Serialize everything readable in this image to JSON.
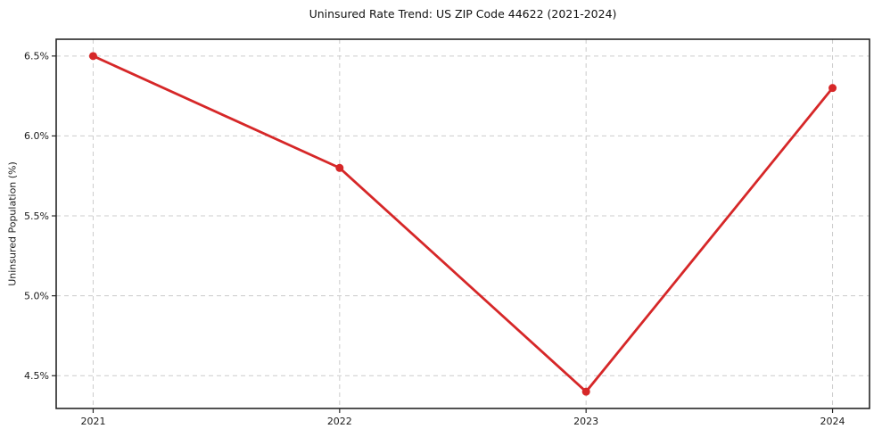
{
  "chart_data": {
    "type": "line",
    "title": "Uninsured Rate Trend: US ZIP Code 44622 (2021-2024)",
    "xlabel": "",
    "ylabel": "Uninsured Population (%)",
    "x": [
      2021,
      2022,
      2023,
      2024
    ],
    "values": [
      6.5,
      5.8,
      4.4,
      6.3
    ],
    "x_tick_labels": [
      "2021",
      "2022",
      "2023",
      "2024"
    ],
    "y_ticks": [
      4.5,
      5.0,
      5.5,
      6.0,
      6.5
    ],
    "y_tick_labels": [
      "4.5%",
      "5.0%",
      "5.5%",
      "6.0%",
      "6.5%"
    ],
    "xlim": [
      2020.85,
      2024.15
    ],
    "ylim": [
      4.295,
      6.605
    ],
    "grid": true,
    "grid_style": "dashed",
    "legend": false,
    "colors": {
      "line": "#d62728",
      "marker": "#d62728",
      "grid": "#cccccc",
      "frame": "#262626",
      "background": "#ffffff",
      "text": "#1a1a1a"
    }
  }
}
